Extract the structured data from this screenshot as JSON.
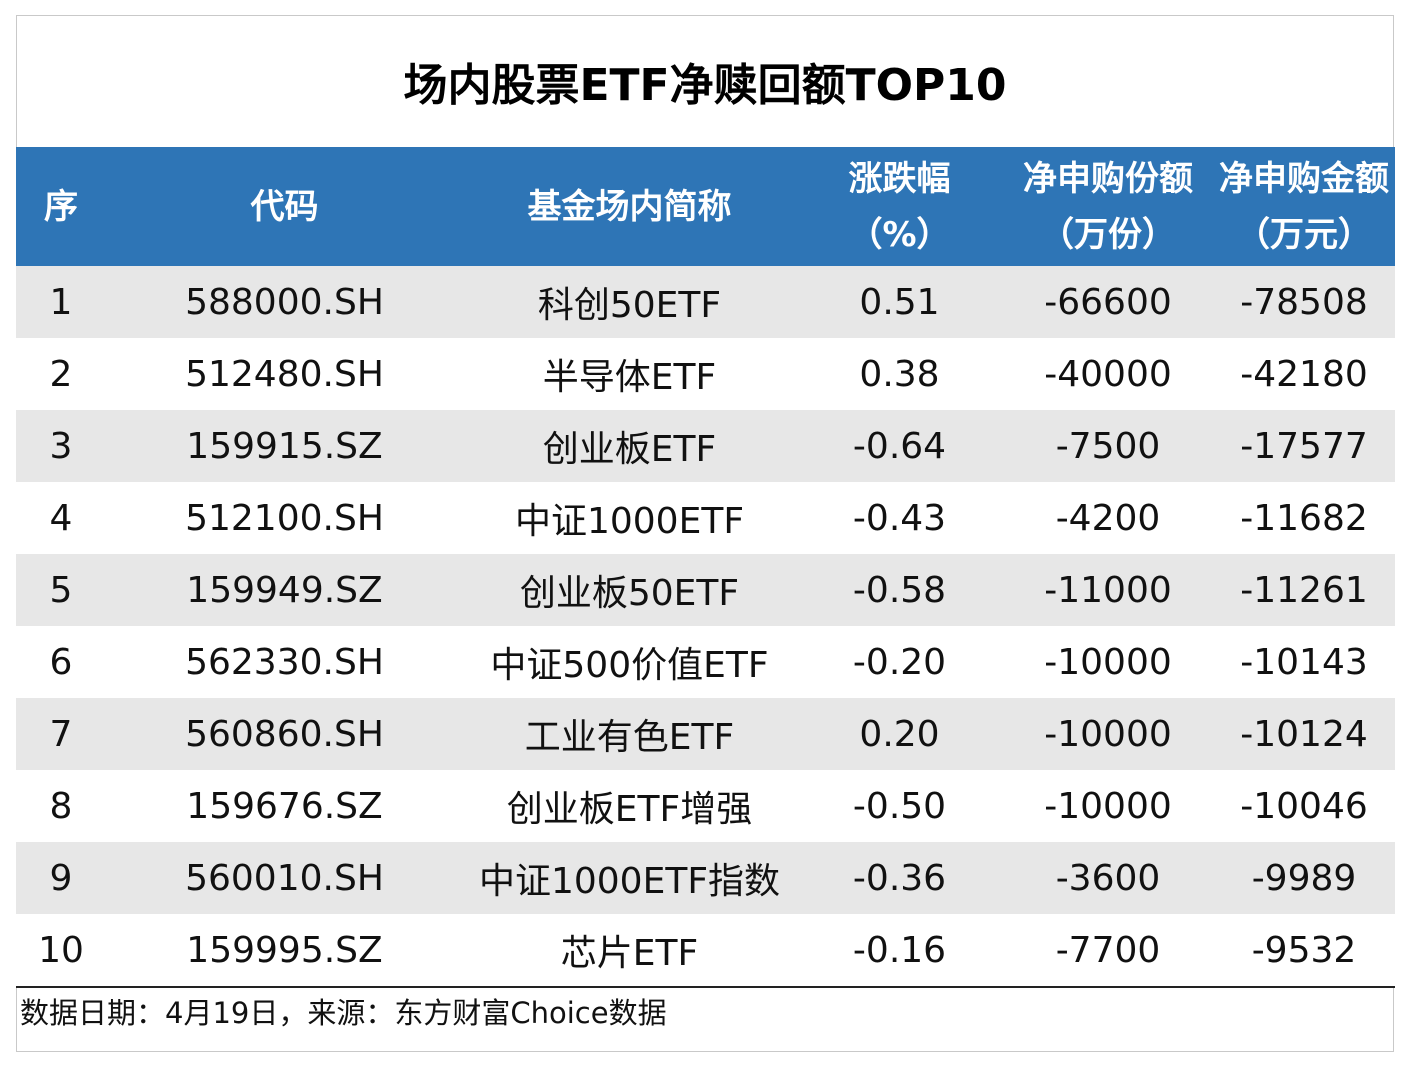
{
  "title": "场内股票ETF净赎回额TOP10",
  "columns": [
    {
      "line1": "序",
      "line2": ""
    },
    {
      "line1": "代码",
      "line2": ""
    },
    {
      "line1": "基金场内简称",
      "line2": ""
    },
    {
      "line1": "涨跌幅",
      "line2": "（%）"
    },
    {
      "line1": "净申购份额",
      "line2": "（万份）"
    },
    {
      "line1": "净申购金额",
      "line2": "（万元）"
    }
  ],
  "rows": [
    {
      "rank": "1",
      "code": "588000.SH",
      "name": "科创50ETF",
      "change": "0.51",
      "shares": "-66600",
      "amount": "-78508"
    },
    {
      "rank": "2",
      "code": "512480.SH",
      "name": "半导体ETF",
      "change": "0.38",
      "shares": "-40000",
      "amount": "-42180"
    },
    {
      "rank": "3",
      "code": "159915.SZ",
      "name": "创业板ETF",
      "change": "-0.64",
      "shares": "-7500",
      "amount": "-17577"
    },
    {
      "rank": "4",
      "code": "512100.SH",
      "name": "中证1000ETF",
      "change": "-0.43",
      "shares": "-4200",
      "amount": "-11682"
    },
    {
      "rank": "5",
      "code": "159949.SZ",
      "name": "创业板50ETF",
      "change": "-0.58",
      "shares": "-11000",
      "amount": "-11261"
    },
    {
      "rank": "6",
      "code": "562330.SH",
      "name": "中证500价值ETF",
      "change": "-0.20",
      "shares": "-10000",
      "amount": "-10143"
    },
    {
      "rank": "7",
      "code": "560860.SH",
      "name": "工业有色ETF",
      "change": "0.20",
      "shares": "-10000",
      "amount": "-10124"
    },
    {
      "rank": "8",
      "code": "159676.SZ",
      "name": "创业板ETF增强",
      "change": "-0.50",
      "shares": "-10000",
      "amount": "-10046"
    },
    {
      "rank": "9",
      "code": "560010.SH",
      "name": "中证1000ETF指数",
      "change": "-0.36",
      "shares": "-3600",
      "amount": "-9989"
    },
    {
      "rank": "10",
      "code": "159995.SZ",
      "name": "芯片ETF",
      "change": "-0.16",
      "shares": "-7700",
      "amount": "-9532"
    }
  ],
  "footer": "数据日期：4月19日，来源：东方财富Choice数据",
  "colors": {
    "header_bg": "#2e75b6",
    "stripe_bg": "#e7e7e7"
  }
}
